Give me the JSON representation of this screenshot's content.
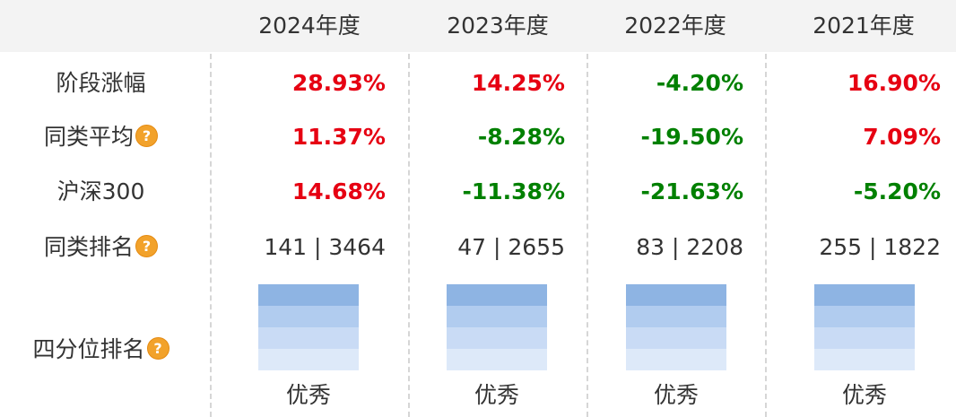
{
  "header": {
    "years": [
      "2024年度",
      "2023年度",
      "2022年度",
      "2021年度"
    ]
  },
  "rows": {
    "stage_return": {
      "label": "阶段涨幅",
      "values": [
        "28.93%",
        "14.25%",
        "-4.20%",
        "16.90%"
      ]
    },
    "peer_avg": {
      "label": "同类平均",
      "values": [
        "11.37%",
        "-8.28%",
        "-19.50%",
        "7.09%"
      ]
    },
    "csi300": {
      "label": "沪深300",
      "values": [
        "14.68%",
        "-11.38%",
        "-21.63%",
        "-5.20%"
      ]
    },
    "peer_rank": {
      "label": "同类排名",
      "values": [
        "141 | 3464",
        "47 | 2655",
        "83 | 2208",
        "255 | 1822"
      ]
    },
    "quartile": {
      "label": "四分位排名",
      "levels": [
        "优秀",
        "优秀",
        "优秀",
        "优秀"
      ]
    }
  },
  "help_icon": {
    "glyph": "?"
  },
  "colors": {
    "positive": "#e60012",
    "negative": "#008000",
    "header_bg": "#f3f3f3",
    "quartile_fills": [
      "#8eb4e3",
      "#b1ccef",
      "#c9dbf5",
      "#dde9f9"
    ]
  }
}
